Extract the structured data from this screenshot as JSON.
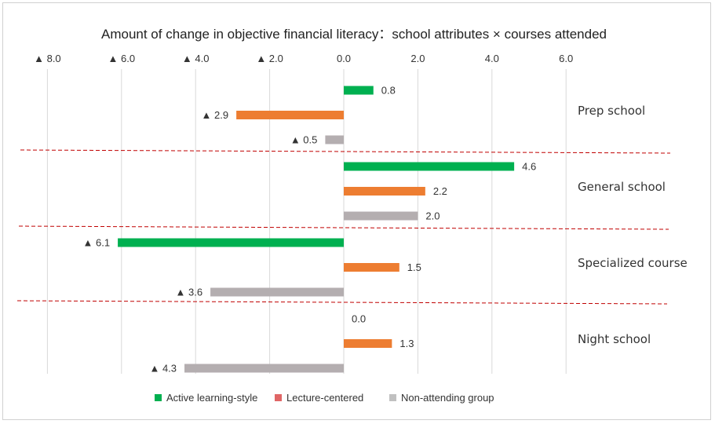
{
  "chart_data": {
    "type": "bar",
    "orientation": "horizontal",
    "title": "Amount of change in objective financial literacy：school attributes × courses attended",
    "negative_marker": "▲",
    "xlim": [
      -8,
      6
    ],
    "x_ticks": [
      {
        "value": -8,
        "label": "8.0"
      },
      {
        "value": -6,
        "label": "6.0"
      },
      {
        "value": -4,
        "label": "4.0"
      },
      {
        "value": -2,
        "label": "2.0"
      },
      {
        "value": 0,
        "label": "0.0"
      },
      {
        "value": 2,
        "label": "2.0"
      },
      {
        "value": 4,
        "label": "4.0"
      },
      {
        "value": 6,
        "label": "6.0"
      }
    ],
    "grid": "vertical",
    "legend_position": "bottom",
    "categories": [
      "Prep school",
      "General school",
      "Specialized course",
      "Night school"
    ],
    "series": [
      {
        "name": "Active learning-style",
        "color": "#00b050",
        "values": [
          0.8,
          4.6,
          -6.1,
          0.0
        ],
        "labels": [
          "0.8",
          "4.6",
          "6.1",
          "0.0"
        ]
      },
      {
        "name": "Lecture-centered",
        "color": "#ed7d31",
        "legend_color": "#e06666",
        "values": [
          -2.9,
          2.2,
          1.5,
          1.3
        ],
        "labels": [
          "2.9",
          "2.2",
          "1.5",
          "1.3"
        ]
      },
      {
        "name": "Non-attending group",
        "color": "#b4aeb0",
        "legend_color": "#c0c0c0",
        "values": [
          -0.5,
          2.0,
          -3.6,
          -4.3
        ],
        "labels": [
          "0.5",
          "2.0",
          "3.6",
          "4.3"
        ]
      }
    ],
    "separator_color": "#c00000"
  }
}
